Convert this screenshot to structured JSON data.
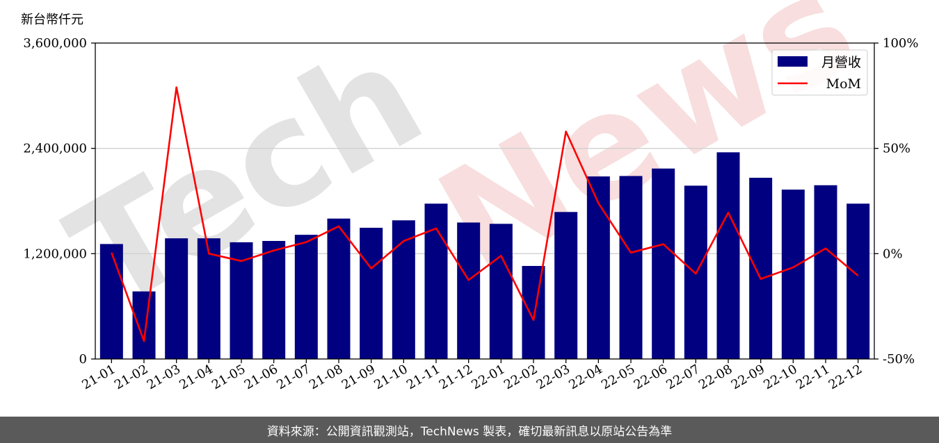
{
  "colors": {
    "bar": "#000080",
    "line": "#ff0000",
    "grid": "#d0d0d0",
    "footer_bg": "#5a5a5a",
    "watermark_dark": "#c8c8c8",
    "watermark_red": "#f4c8c8"
  },
  "watermark": {
    "part1": "Tech",
    "part2": "News"
  },
  "footer_text": "資料來源：公開資訊觀測站，TechNews 製表，確切最新訊息以原站公告為準",
  "chart_data": {
    "type": "bar",
    "y_unit_label": "新台幣仟元",
    "categories": [
      "21-01",
      "21-02",
      "21-03",
      "21-04",
      "21-05",
      "21-06",
      "21-07",
      "21-08",
      "21-09",
      "21-10",
      "21-11",
      "21-12",
      "22-01",
      "22-02",
      "22-03",
      "22-04",
      "22-05",
      "22-06",
      "22-07",
      "22-08",
      "22-09",
      "22-10",
      "22-11",
      "22-12"
    ],
    "series": [
      {
        "name": "月營收",
        "type": "bar",
        "axis": "left",
        "values": [
          1310000,
          770000,
          1375000,
          1375000,
          1330000,
          1345000,
          1415000,
          1600000,
          1495000,
          1580000,
          1770000,
          1555000,
          1540000,
          1060000,
          1675000,
          2080000,
          2085000,
          2170000,
          1975000,
          2355000,
          2065000,
          1930000,
          1980000,
          1770000
        ]
      },
      {
        "name": "MoM",
        "type": "line",
        "axis": "right",
        "values": [
          0.5,
          -41.5,
          79,
          0,
          -3.5,
          1.5,
          5.5,
          13,
          -7,
          6,
          12,
          -12.5,
          -1,
          -31.5,
          58,
          24,
          0.5,
          4.5,
          -9.5,
          19.5,
          -12,
          -6.5,
          2.5,
          -10.5
        ]
      }
    ],
    "y_left": {
      "lim": [
        0,
        3600000
      ],
      "ticks": [
        0,
        1200000,
        2400000,
        3600000
      ],
      "tick_labels": [
        "0",
        "1,200,000",
        "2,400,000",
        "3,600,000"
      ]
    },
    "y_right": {
      "lim": [
        -50,
        100
      ],
      "ticks": [
        -50,
        0,
        50,
        100
      ],
      "tick_labels": [
        "-50%",
        "0%",
        "50%",
        "100%"
      ]
    },
    "grid": true,
    "legend_position": "top-right"
  }
}
